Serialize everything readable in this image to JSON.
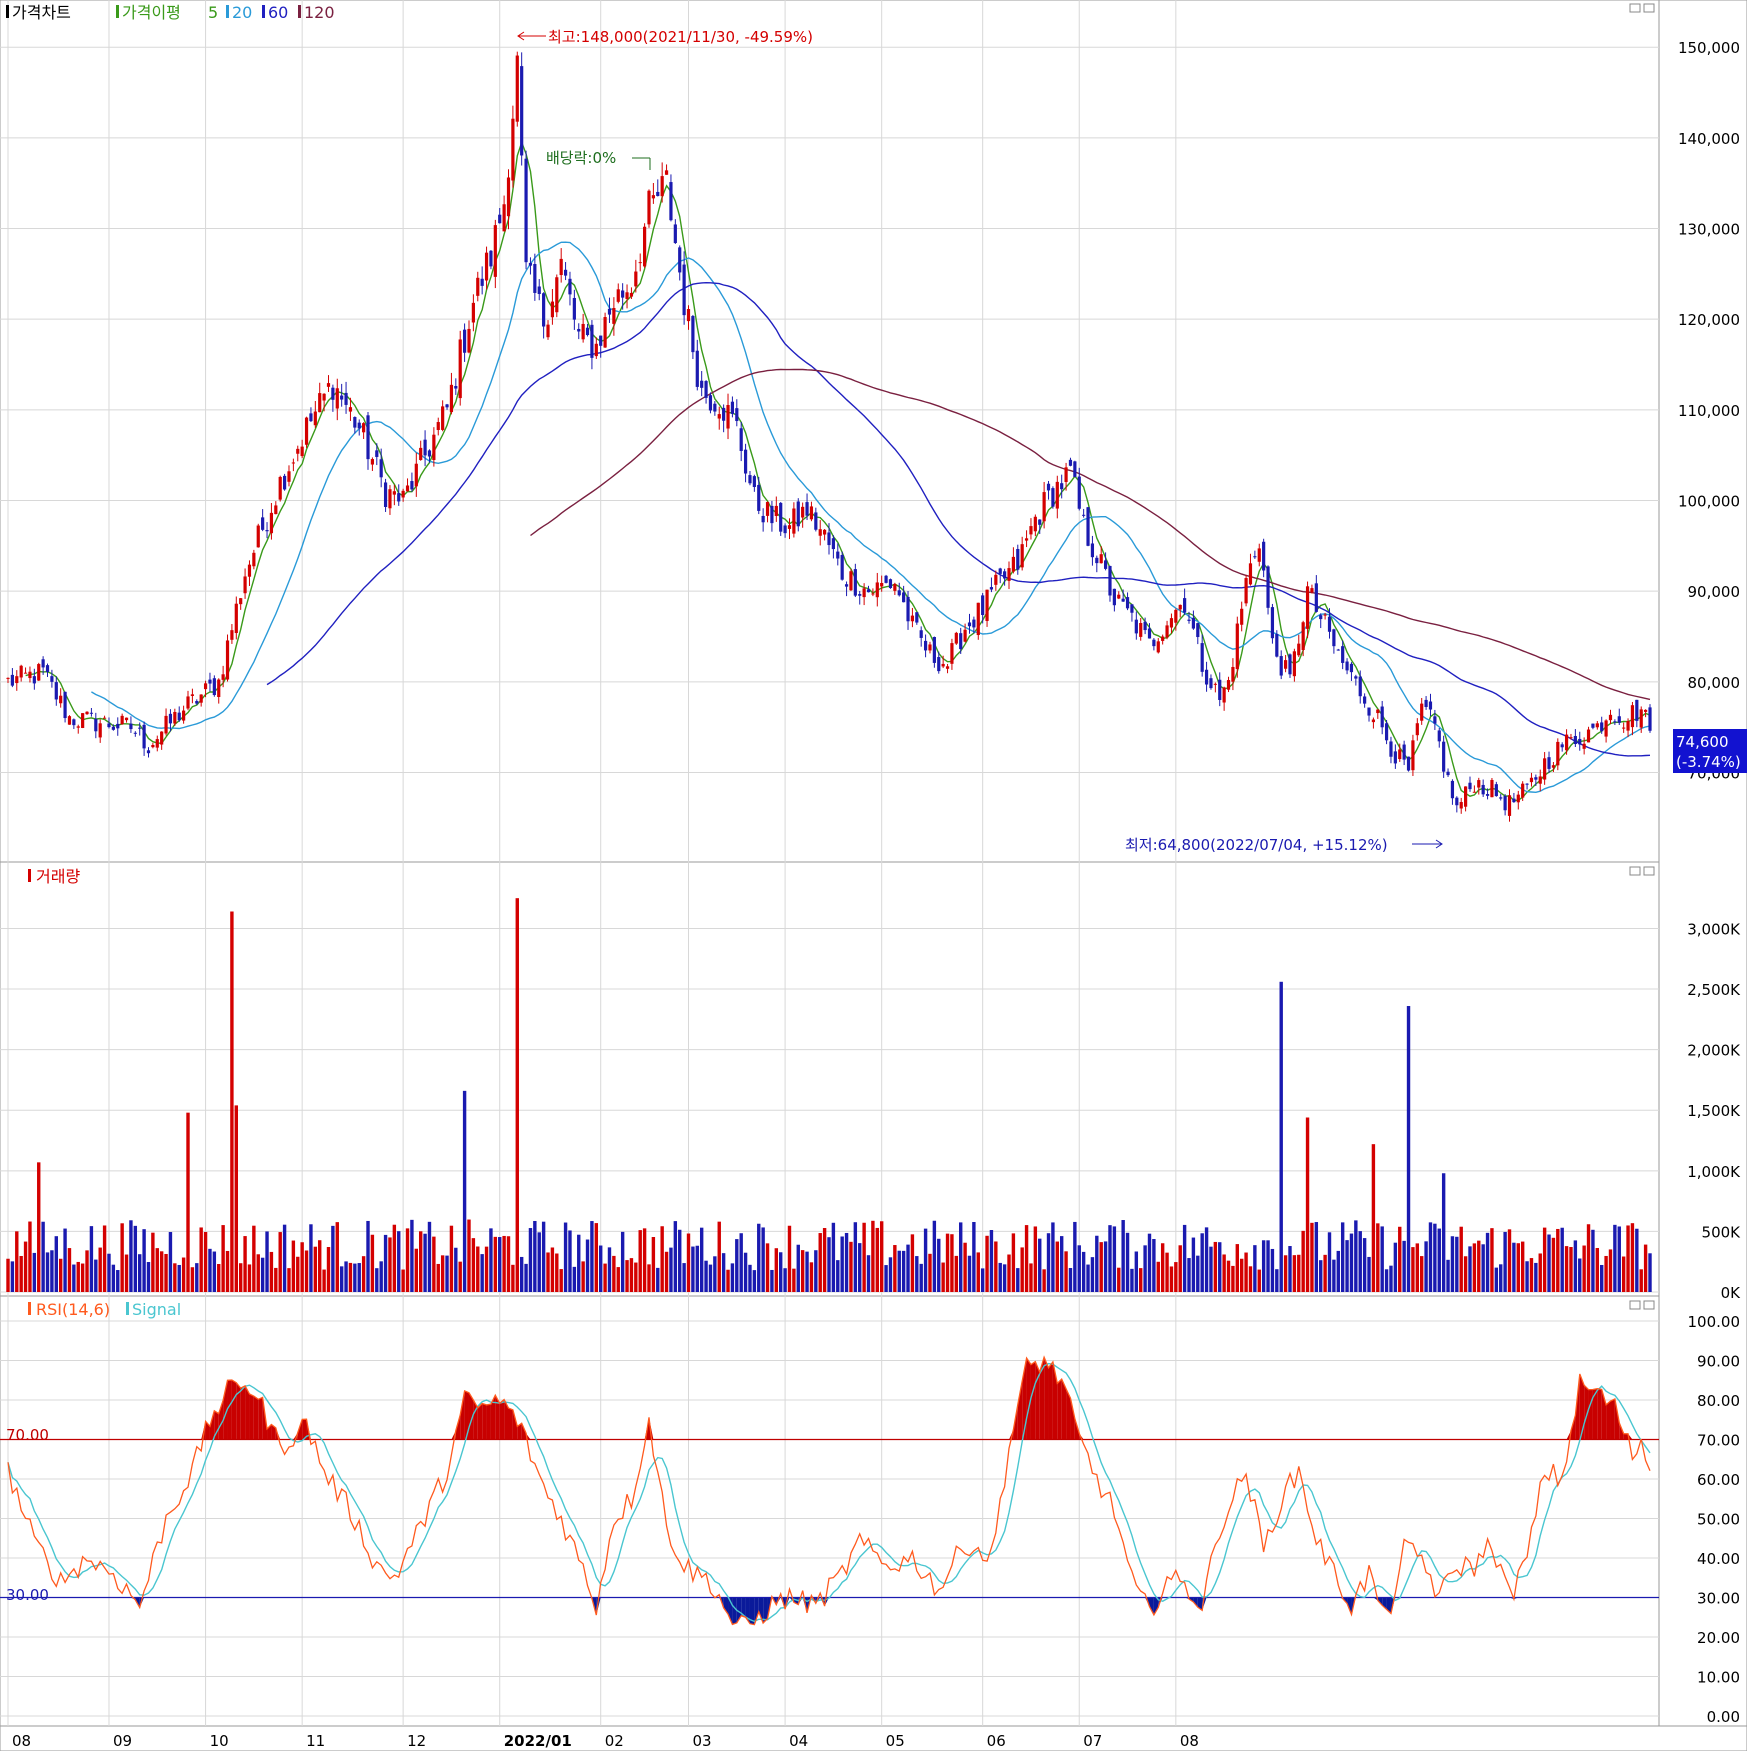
{
  "legend_price": {
    "title": "가격차트",
    "ma_label": "가격이평",
    "ma5": "5",
    "ma20": "20",
    "ma60": "60",
    "ma120": "120"
  },
  "legend_volume": {
    "title": "거래량"
  },
  "legend_rsi": {
    "title": "RSI(14,6)",
    "signal": "Signal"
  },
  "annotations": {
    "high": "최고:148,000(2021/11/30, -49.59%)",
    "low": "최저:64,800(2022/07/04, +15.12%)",
    "dividend": "배당락:0%"
  },
  "current_price": {
    "value": "74,600",
    "change": "(-3.74%)"
  },
  "rsi_levels": {
    "upper": "70.00",
    "lower": "30.00"
  },
  "colors": {
    "up": "#d40000",
    "down": "#1a1ab0",
    "ma5": "#3a9a1a",
    "ma20": "#2a9ad8",
    "ma60": "#2020c0",
    "ma120": "#7a2040",
    "rsi": "#ff5a1e",
    "signal": "#4ac6d0",
    "grid": "#d8d8d8"
  },
  "icons": [
    "minimize-icon",
    "close-icon"
  ],
  "chart_data": [
    {
      "type": "candlestick",
      "title": "가격차트",
      "ylim": [
        62000,
        153000
      ],
      "y_ticks": [
        "150,000",
        "140,000",
        "130,000",
        "120,000",
        "110,000",
        "100,000",
        "90,000",
        "80,000",
        "70,000"
      ],
      "x_ticks": [
        "08",
        "09",
        "10",
        "11",
        "12",
        "2022/01",
        "02",
        "03",
        "04",
        "05",
        "06",
        "07",
        "08"
      ],
      "price_keypoints": [
        [
          0,
          80000
        ],
        [
          8,
          81000
        ],
        [
          14,
          76000
        ],
        [
          28,
          75000
        ],
        [
          32,
          73000
        ],
        [
          40,
          77000
        ],
        [
          48,
          80000
        ],
        [
          54,
          92000
        ],
        [
          58,
          97000
        ],
        [
          62,
          102000
        ],
        [
          68,
          108000
        ],
        [
          74,
          113000
        ],
        [
          80,
          108000
        ],
        [
          86,
          101000
        ],
        [
          90,
          100000
        ],
        [
          94,
          104000
        ],
        [
          100,
          110000
        ],
        [
          106,
          122000
        ],
        [
          110,
          127000
        ],
        [
          113,
          133000
        ],
        [
          116,
          148000
        ],
        [
          118,
          125000
        ],
        [
          122,
          120000
        ],
        [
          126,
          126000
        ],
        [
          130,
          118000
        ],
        [
          134,
          117000
        ],
        [
          138,
          122000
        ],
        [
          142,
          124000
        ],
        [
          146,
          132000
        ],
        [
          150,
          135000
        ],
        [
          154,
          122000
        ],
        [
          158,
          112000
        ],
        [
          162,
          111000
        ],
        [
          166,
          108000
        ],
        [
          170,
          100000
        ],
        [
          174,
          98000
        ],
        [
          178,
          97000
        ],
        [
          182,
          99000
        ],
        [
          186,
          96000
        ],
        [
          190,
          92000
        ],
        [
          196,
          90000
        ],
        [
          202,
          91000
        ],
        [
          206,
          86000
        ],
        [
          210,
          83000
        ],
        [
          214,
          82000
        ],
        [
          218,
          86000
        ],
        [
          222,
          88000
        ],
        [
          226,
          91000
        ],
        [
          230,
          93000
        ],
        [
          234,
          98000
        ],
        [
          238,
          101000
        ],
        [
          242,
          103000
        ],
        [
          245,
          97000
        ],
        [
          248,
          94000
        ],
        [
          252,
          89000
        ],
        [
          256,
          87000
        ],
        [
          260,
          84000
        ],
        [
          264,
          87000
        ],
        [
          268,
          89000
        ],
        [
          272,
          82000
        ],
        [
          276,
          78000
        ],
        [
          278,
          80000
        ],
        [
          282,
          91000
        ],
        [
          285,
          96000
        ],
        [
          288,
          84000
        ],
        [
          292,
          80000
        ],
        [
          296,
          90000
        ],
        [
          300,
          86000
        ],
        [
          304,
          82000
        ],
        [
          308,
          79000
        ],
        [
          312,
          76000
        ],
        [
          316,
          72000
        ],
        [
          319,
          70000
        ],
        [
          322,
          77000
        ],
        [
          325,
          75000
        ],
        [
          328,
          69000
        ],
        [
          330,
          66000
        ],
        [
          334,
          69000
        ],
        [
          338,
          68000
        ],
        [
          342,
          66500
        ],
        [
          346,
          68000
        ],
        [
          350,
          71000
        ],
        [
          354,
          73000
        ],
        [
          358,
          74000
        ],
        [
          362,
          75000
        ],
        [
          365,
          77000
        ],
        [
          368,
          76000
        ],
        [
          372,
          77000
        ],
        [
          374,
          74600
        ]
      ],
      "price_high": 148000,
      "price_low": 64800,
      "last": 74600
    },
    {
      "type": "bar",
      "title": "거래량",
      "ylim": [
        0,
        3400
      ],
      "y_ticks": [
        "3,000K",
        "2,500K",
        "2,000K",
        "1,500K",
        "1,000K",
        "500K",
        "0K"
      ],
      "spikes_k": [
        [
          7,
          1070
        ],
        [
          41,
          1480
        ],
        [
          51,
          3140
        ],
        [
          52,
          1540
        ],
        [
          104,
          1660
        ],
        [
          116,
          3250
        ],
        [
          290,
          2560
        ],
        [
          296,
          1440
        ],
        [
          311,
          1220
        ],
        [
          319,
          2360
        ],
        [
          327,
          980
        ]
      ]
    },
    {
      "type": "line",
      "title": "RSI(14,6)",
      "ylim": [
        0,
        100
      ],
      "y_ticks": [
        "100.00",
        "90.00",
        "80.00",
        "70.00",
        "60.00",
        "50.00",
        "40.00",
        "30.00",
        "20.00",
        "10.00",
        "0.00"
      ],
      "rsi_keypoints": [
        [
          0,
          62
        ],
        [
          6,
          44
        ],
        [
          12,
          34
        ],
        [
          18,
          40
        ],
        [
          24,
          36
        ],
        [
          30,
          28
        ],
        [
          36,
          50
        ],
        [
          42,
          62
        ],
        [
          46,
          75
        ],
        [
          50,
          82
        ],
        [
          54,
          85
        ],
        [
          58,
          78
        ],
        [
          62,
          68
        ],
        [
          68,
          74
        ],
        [
          72,
          62
        ],
        [
          78,
          52
        ],
        [
          84,
          38
        ],
        [
          88,
          35
        ],
        [
          94,
          48
        ],
        [
          100,
          62
        ],
        [
          104,
          80
        ],
        [
          108,
          78
        ],
        [
          112,
          80
        ],
        [
          116,
          75
        ],
        [
          122,
          58
        ],
        [
          126,
          50
        ],
        [
          130,
          40
        ],
        [
          134,
          28
        ],
        [
          138,
          50
        ],
        [
          142,
          55
        ],
        [
          146,
          75
        ],
        [
          150,
          48
        ],
        [
          154,
          38
        ],
        [
          160,
          34
        ],
        [
          166,
          22
        ],
        [
          170,
          24
        ],
        [
          174,
          28
        ],
        [
          178,
          30
        ],
        [
          184,
          28
        ],
        [
          190,
          36
        ],
        [
          194,
          44
        ],
        [
          200,
          38
        ],
        [
          206,
          40
        ],
        [
          212,
          32
        ],
        [
          218,
          44
        ],
        [
          224,
          40
        ],
        [
          228,
          68
        ],
        [
          232,
          88
        ],
        [
          236,
          90
        ],
        [
          240,
          85
        ],
        [
          244,
          70
        ],
        [
          248,
          60
        ],
        [
          252,
          52
        ],
        [
          256,
          34
        ],
        [
          260,
          26
        ],
        [
          264,
          35
        ],
        [
          268,
          33
        ],
        [
          272,
          28
        ],
        [
          276,
          48
        ],
        [
          282,
          62
        ],
        [
          286,
          42
        ],
        [
          290,
          55
        ],
        [
          294,
          62
        ],
        [
          298,
          45
        ],
        [
          302,
          36
        ],
        [
          306,
          28
        ],
        [
          310,
          36
        ],
        [
          314,
          24
        ],
        [
          318,
          42
        ],
        [
          322,
          40
        ],
        [
          326,
          30
        ],
        [
          330,
          38
        ],
        [
          334,
          38
        ],
        [
          338,
          44
        ],
        [
          342,
          30
        ],
        [
          346,
          40
        ],
        [
          350,
          62
        ],
        [
          354,
          60
        ],
        [
          358,
          84
        ],
        [
          362,
          82
        ],
        [
          366,
          78
        ],
        [
          370,
          66
        ],
        [
          372,
          70
        ],
        [
          374,
          62
        ]
      ],
      "levels": [
        70,
        30
      ]
    }
  ]
}
